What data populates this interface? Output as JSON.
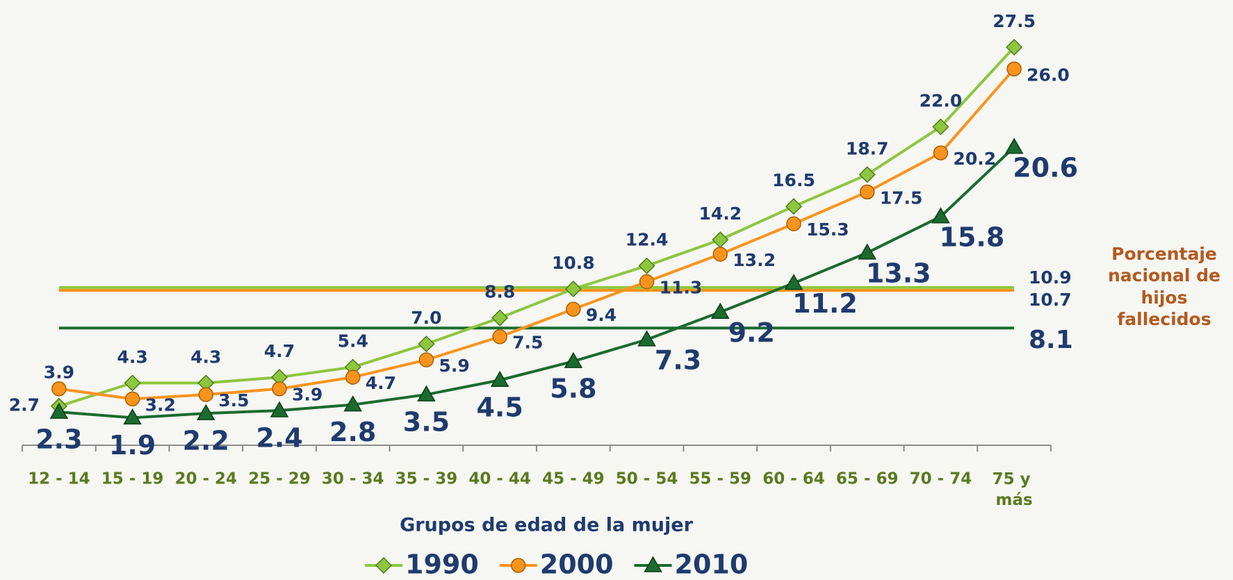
{
  "chart_data": {
    "type": "line",
    "categories": [
      "12 - 14",
      "15 - 19",
      "20 - 24",
      "25 - 29",
      "30 - 34",
      "35 - 39",
      "40 - 44",
      "45 - 49",
      "50 - 54",
      "55 - 59",
      "60 - 64",
      "65 - 69",
      "70 - 74",
      "75 y más"
    ],
    "x_label": "Grupos de edad de la mujer",
    "series": [
      {
        "name": "1990",
        "color": "#8dc63f",
        "marker": "diamond",
        "values": [
          2.7,
          4.3,
          4.3,
          4.7,
          5.4,
          7.0,
          8.8,
          10.8,
          12.4,
          14.2,
          16.5,
          18.7,
          22.0,
          27.5
        ],
        "value_labels": [
          "2.7",
          "4.3",
          "4.3",
          "4.7",
          "5.4",
          "7.0",
          "8.8",
          "10.8",
          "12.4",
          "14.2",
          "16.5",
          "18.7",
          "22.0",
          "27.5"
        ]
      },
      {
        "name": "2000",
        "color": "#f7941d",
        "marker": "circle",
        "values": [
          3.9,
          3.2,
          3.5,
          3.9,
          4.7,
          5.9,
          7.5,
          9.4,
          11.3,
          13.2,
          15.3,
          17.5,
          20.2,
          26.0
        ],
        "value_labels": [
          "3.9",
          "3.2",
          "3.5",
          "3.9",
          "4.7",
          "5.9",
          "7.5",
          "9.4",
          "11.3",
          "13.2",
          "15.3",
          "17.5",
          "20.2",
          "26.0"
        ]
      },
      {
        "name": "2010",
        "color": "#1b6b2f",
        "marker": "triangle",
        "values": [
          2.3,
          1.9,
          2.2,
          2.4,
          2.8,
          3.5,
          4.5,
          5.8,
          7.3,
          9.2,
          11.2,
          13.3,
          15.8,
          20.6
        ],
        "value_labels": [
          "2.3",
          "1.9",
          "2.2",
          "2.4",
          "2.8",
          "3.5",
          "4.5",
          "5.8",
          "7.3",
          "9.2",
          "11.2",
          "13.3",
          "15.8",
          "20.6"
        ]
      }
    ],
    "reference_lines": [
      {
        "value": 10.9,
        "color": "#8dc63f"
      },
      {
        "value": 10.7,
        "color": "#f7941d"
      },
      {
        "value": 8.1,
        "color": "#1b6b2f"
      }
    ],
    "annotation": "Porcentaje nacional de hijos fallecidos"
  }
}
